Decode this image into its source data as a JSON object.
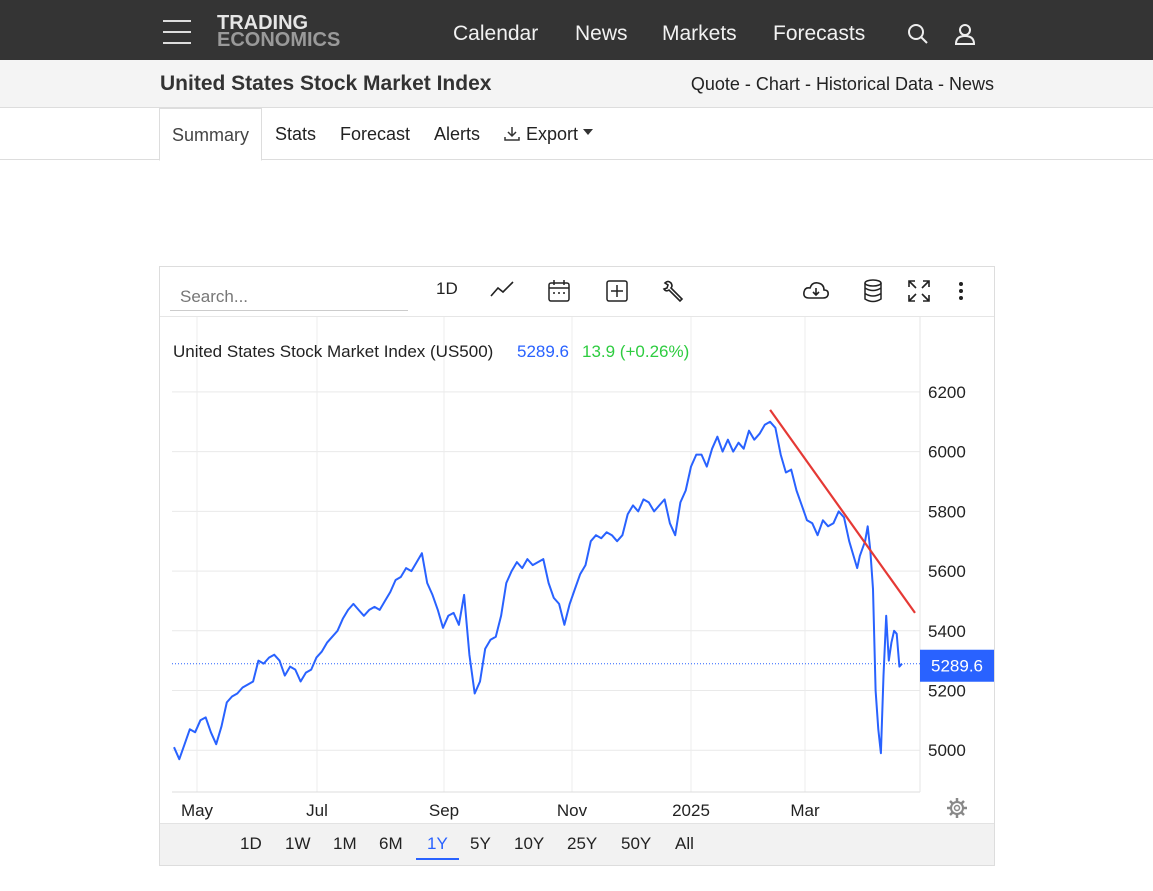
{
  "header": {
    "logo_line1": "TRADING",
    "logo_line2": "ECONOMICS",
    "nav": [
      "Calendar",
      "News",
      "Markets",
      "Forecasts"
    ]
  },
  "subheader": {
    "title": "United States Stock Market Index",
    "links": [
      "Quote",
      "Chart",
      "Historical Data",
      "News"
    ]
  },
  "tabs": [
    "Summary",
    "Stats",
    "Forecast",
    "Alerts",
    "Export"
  ],
  "active_tab": "Summary",
  "toolbar": {
    "search_placeholder": "Search...",
    "interval": "1D"
  },
  "chart_info": {
    "name": "United States Stock Market Index (US500)",
    "last": "5289.6",
    "change": "13.9 (+0.26%)",
    "last_label": "5289.6"
  },
  "range_buttons": [
    "1D",
    "1W",
    "1M",
    "6M",
    "1Y",
    "5Y",
    "10Y",
    "25Y",
    "50Y",
    "All"
  ],
  "active_range": "1Y",
  "colors": {
    "series": "#2962ff",
    "trendline": "#e53935",
    "change_positive": "#2ecc40",
    "topbar": "#343434"
  },
  "chart_data": {
    "type": "line",
    "x_tick_labels": [
      "May",
      "Jul",
      "Sep",
      "Nov",
      "2025",
      "Mar"
    ],
    "y_tick_labels": [
      "6200",
      "6000",
      "5800",
      "5600",
      "5400",
      "5200",
      "5000"
    ],
    "ylim": [
      4860,
      6250
    ],
    "xlim": [
      0,
      250
    ],
    "grid": true,
    "series": [
      {
        "values": [
          [
            0,
            5010
          ],
          [
            2,
            4970
          ],
          [
            4,
            5020
          ],
          [
            6,
            5070
          ],
          [
            8,
            5060
          ],
          [
            10,
            5100
          ],
          [
            12,
            5110
          ],
          [
            14,
            5060
          ],
          [
            16,
            5020
          ],
          [
            18,
            5080
          ],
          [
            20,
            5160
          ],
          [
            22,
            5180
          ],
          [
            24,
            5190
          ],
          [
            26,
            5210
          ],
          [
            28,
            5220
          ],
          [
            30,
            5230
          ],
          [
            32,
            5300
          ],
          [
            34,
            5290
          ],
          [
            36,
            5310
          ],
          [
            38,
            5320
          ],
          [
            40,
            5300
          ],
          [
            42,
            5250
          ],
          [
            44,
            5280
          ],
          [
            46,
            5270
          ],
          [
            48,
            5230
          ],
          [
            50,
            5260
          ],
          [
            52,
            5270
          ],
          [
            54,
            5310
          ],
          [
            56,
            5330
          ],
          [
            58,
            5360
          ],
          [
            60,
            5380
          ],
          [
            62,
            5400
          ],
          [
            64,
            5440
          ],
          [
            66,
            5470
          ],
          [
            68,
            5490
          ],
          [
            70,
            5470
          ],
          [
            72,
            5450
          ],
          [
            74,
            5470
          ],
          [
            76,
            5480
          ],
          [
            78,
            5470
          ],
          [
            80,
            5500
          ],
          [
            82,
            5530
          ],
          [
            84,
            5570
          ],
          [
            86,
            5580
          ],
          [
            88,
            5610
          ],
          [
            90,
            5600
          ],
          [
            92,
            5630
          ],
          [
            94,
            5660
          ],
          [
            96,
            5560
          ],
          [
            98,
            5520
          ],
          [
            100,
            5470
          ],
          [
            102,
            5410
          ],
          [
            104,
            5450
          ],
          [
            106,
            5460
          ],
          [
            108,
            5420
          ],
          [
            110,
            5520
          ],
          [
            112,
            5320
          ],
          [
            114,
            5190
          ],
          [
            116,
            5230
          ],
          [
            118,
            5340
          ],
          [
            120,
            5370
          ],
          [
            122,
            5380
          ],
          [
            124,
            5450
          ],
          [
            126,
            5560
          ],
          [
            128,
            5600
          ],
          [
            130,
            5630
          ],
          [
            132,
            5610
          ],
          [
            134,
            5640
          ],
          [
            136,
            5620
          ],
          [
            138,
            5630
          ],
          [
            140,
            5640
          ],
          [
            142,
            5560
          ],
          [
            144,
            5510
          ],
          [
            146,
            5490
          ],
          [
            148,
            5420
          ],
          [
            150,
            5490
          ],
          [
            152,
            5540
          ],
          [
            154,
            5590
          ],
          [
            156,
            5620
          ],
          [
            158,
            5700
          ],
          [
            160,
            5720
          ],
          [
            162,
            5710
          ],
          [
            164,
            5730
          ],
          [
            166,
            5720
          ],
          [
            168,
            5700
          ],
          [
            170,
            5720
          ],
          [
            172,
            5790
          ],
          [
            174,
            5820
          ],
          [
            176,
            5800
          ],
          [
            178,
            5840
          ],
          [
            180,
            5830
          ],
          [
            182,
            5800
          ],
          [
            184,
            5820
          ],
          [
            186,
            5840
          ],
          [
            188,
            5760
          ],
          [
            190,
            5720
          ],
          [
            192,
            5830
          ],
          [
            194,
            5870
          ],
          [
            196,
            5950
          ],
          [
            198,
            5990
          ],
          [
            200,
            5990
          ]
        ]
      }
    ]
  }
}
